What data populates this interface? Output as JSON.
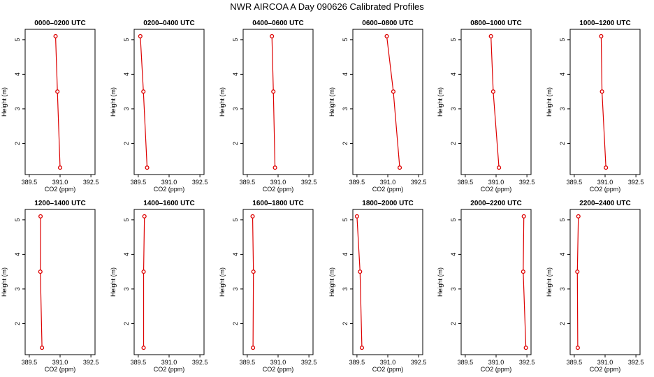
{
  "title": "NWR AIRCOA A  Day 090626  Calibrated Profiles",
  "colors": {
    "series": "#dd0000",
    "axis": "#000000",
    "background": "#ffffff"
  },
  "chart_data": {
    "type": "line",
    "xlabel": "CO2 (ppm)",
    "ylabel": "Height (m)",
    "xlim": [
      389.3,
      392.7
    ],
    "ylim": [
      1.1,
      5.3
    ],
    "xticks": [
      389.5,
      391.0,
      392.5
    ],
    "xtick_labels": [
      "389.5",
      "391.0",
      "392.5"
    ],
    "yticks": [
      2,
      3,
      4,
      5
    ],
    "ytick_labels": [
      "2",
      "3",
      "4",
      "5"
    ],
    "panels": [
      {
        "title": "0000–0200 UTC",
        "co2": [
          390.78,
          390.87,
          391.0
        ],
        "height": [
          5.1,
          3.5,
          1.3
        ]
      },
      {
        "title": "0200–0400 UTC",
        "co2": [
          389.6,
          389.75,
          389.93
        ],
        "height": [
          5.1,
          3.5,
          1.3
        ]
      },
      {
        "title": "0400–0600 UTC",
        "co2": [
          390.7,
          390.77,
          390.85
        ],
        "height": [
          5.1,
          3.5,
          1.3
        ]
      },
      {
        "title": "0600–0800 UTC",
        "co2": [
          390.95,
          391.27,
          391.58
        ],
        "height": [
          5.1,
          3.5,
          1.3
        ]
      },
      {
        "title": "0800–1000 UTC",
        "co2": [
          390.75,
          390.86,
          391.14
        ],
        "height": [
          5.1,
          3.5,
          1.3
        ]
      },
      {
        "title": "1000–1200 UTC",
        "co2": [
          390.81,
          390.85,
          391.04
        ],
        "height": [
          5.1,
          3.5,
          1.3
        ]
      },
      {
        "title": "1200–1400 UTC",
        "co2": [
          390.05,
          390.04,
          390.12
        ],
        "height": [
          5.1,
          3.5,
          1.3
        ]
      },
      {
        "title": "1400–1600 UTC",
        "co2": [
          389.8,
          389.76,
          389.76
        ],
        "height": [
          5.1,
          3.5,
          1.3
        ]
      },
      {
        "title": "1600–1800 UTC",
        "co2": [
          389.76,
          389.8,
          389.78
        ],
        "height": [
          5.1,
          3.5,
          1.3
        ]
      },
      {
        "title": "1800–2000 UTC",
        "co2": [
          389.5,
          389.65,
          389.74
        ],
        "height": [
          5.1,
          3.5,
          1.3
        ]
      },
      {
        "title": "2000–2200 UTC",
        "co2": [
          392.35,
          392.32,
          392.45
        ],
        "height": [
          5.1,
          3.5,
          1.3
        ]
      },
      {
        "title": "2200–2400 UTC",
        "co2": [
          389.7,
          389.65,
          389.67
        ],
        "height": [
          5.1,
          3.5,
          1.3
        ]
      }
    ]
  }
}
